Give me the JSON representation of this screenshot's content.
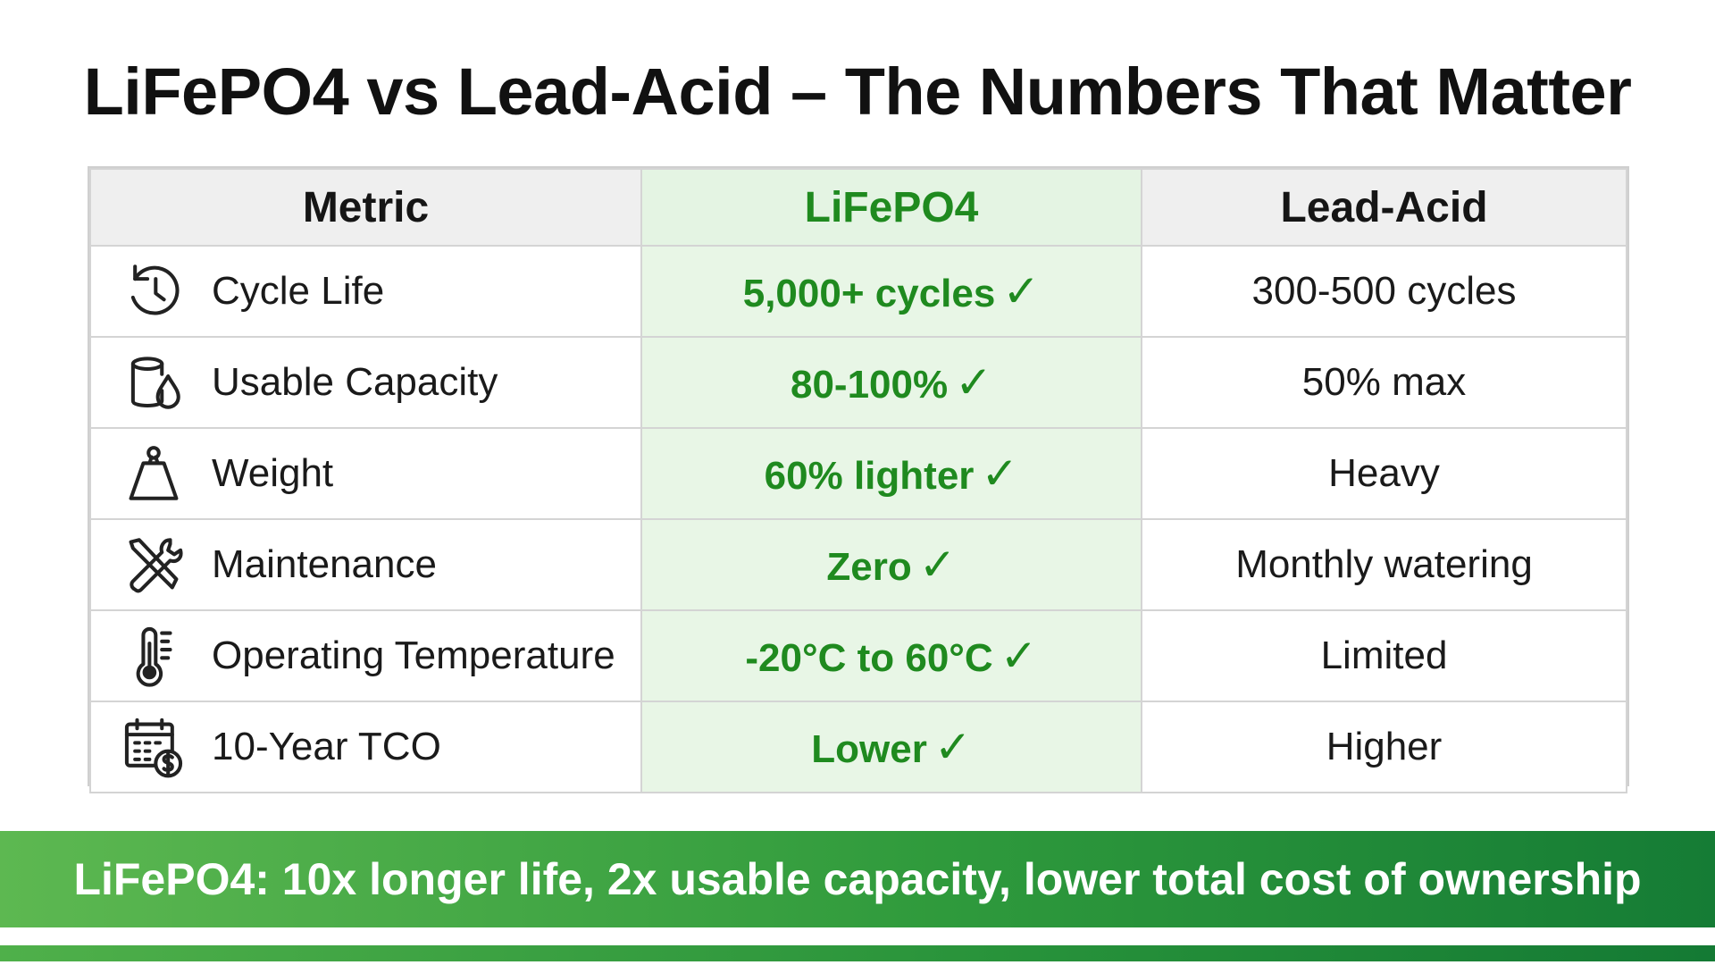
{
  "title": "LiFePO4 vs Lead-Acid – The Numbers That Matter",
  "table": {
    "headers": [
      "Metric",
      "LiFePO4",
      "Lead-Acid"
    ],
    "rows": [
      {
        "icon": "cycle-clock-icon",
        "metric": "Cycle Life",
        "lifepo4": "5,000+ cycles",
        "lead_acid": "300-500 cycles"
      },
      {
        "icon": "capacity-drop-icon",
        "metric": "Usable Capacity",
        "lifepo4": "80-100%",
        "lead_acid": "50% max"
      },
      {
        "icon": "weight-icon",
        "metric": "Weight",
        "lifepo4": "60% lighter",
        "lead_acid": "Heavy"
      },
      {
        "icon": "tools-icon",
        "metric": "Maintenance",
        "lifepo4": "Zero",
        "lead_acid": "Monthly watering"
      },
      {
        "icon": "thermometer-icon",
        "metric": "Operating Temperature",
        "lifepo4": "-20°C to 60°C",
        "lead_acid": "Limited"
      },
      {
        "icon": "calendar-dollar-icon",
        "metric": "10-Year TCO",
        "lifepo4": "Lower",
        "lead_acid": "Higher"
      }
    ],
    "check_glyph": "✓"
  },
  "banner": "LiFePO4: 10x longer life, 2x usable capacity, lower total cost of ownership",
  "colors": {
    "accent_green": "#1f8a1f",
    "lifepo4_column_bg": "#e8f6e6",
    "header_bg": "#efefef",
    "banner_start": "#5db851",
    "banner_end": "#157c35"
  }
}
